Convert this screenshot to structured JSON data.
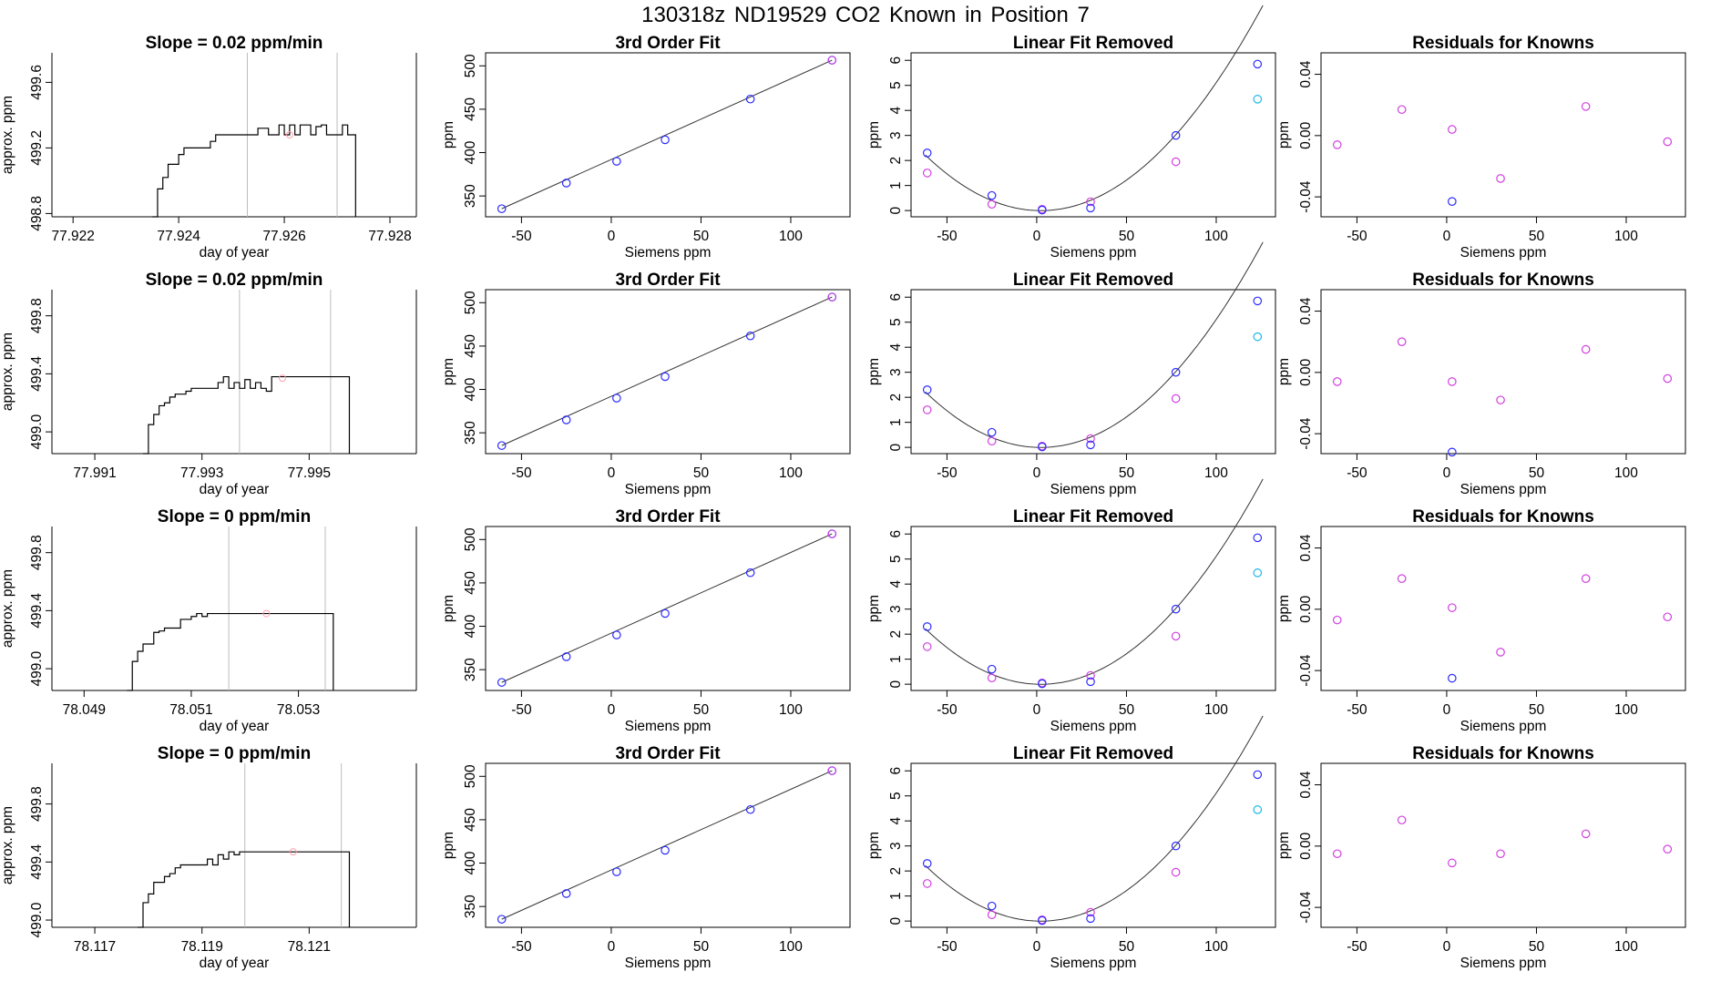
{
  "title": "130318z      ND19529    CO2 Known in Position  7",
  "colors": {
    "blue": "#2b2bff",
    "magenta": "#d23fe0",
    "cyan": "#19b8e6",
    "pink": "#ff9fb0",
    "grid": "#bdbdbd",
    "line": "#000000"
  },
  "labels": {
    "day_of_year": "day of year",
    "approx_ppm": "approx. ppm",
    "siemens_ppm": "Siemens ppm",
    "ppm": "ppm",
    "fit3": "3rd Order Fit",
    "linrem": "Linear Fit Removed",
    "resid": "Residuals for Knowns"
  },
  "chart_data": [
    {
      "type": "line",
      "row": 0,
      "title": "Slope =  0.02  ppm/min",
      "xlabel": "day of year",
      "ylabel": "approx. ppm",
      "xlim": [
        77.9216,
        77.9285
      ],
      "ylim": [
        498.78,
        499.78
      ],
      "xticks": [
        "77.922",
        "77.924",
        "77.926",
        "77.928"
      ],
      "yticks": [
        "498.8",
        "499.2",
        "499.6"
      ],
      "vlines": [
        77.9253,
        77.927
      ],
      "marker": [
        77.9261,
        499.28
      ],
      "trace_x": [
        77.9235,
        77.9236,
        77.9237,
        77.9238,
        77.9239,
        77.924,
        77.9241,
        77.9242,
        77.9245,
        77.9246,
        77.9247,
        77.9249,
        77.9253,
        77.9255,
        77.9257,
        77.9258,
        77.9259,
        77.926,
        77.9261,
        77.9262,
        77.9263,
        77.9264,
        77.9265,
        77.9266,
        77.9267,
        77.9268,
        77.9269,
        77.927,
        77.9271,
        77.9272,
        77.9273
      ],
      "trace_y": [
        498.78,
        498.95,
        499.02,
        499.1,
        499.1,
        499.16,
        499.2,
        499.2,
        499.2,
        499.24,
        499.28,
        499.28,
        499.28,
        499.32,
        499.28,
        499.28,
        499.34,
        499.28,
        499.34,
        499.28,
        499.34,
        499.34,
        499.28,
        499.33,
        499.34,
        499.28,
        499.28,
        499.28,
        499.34,
        499.28,
        499.28
      ],
      "end_x": 77.92735
    },
    {
      "type": "scatter",
      "row": 0,
      "title": "3rd Order Fit",
      "xlabel": "Siemens ppm",
      "ylabel": "ppm",
      "xlim": [
        -70,
        133
      ],
      "ylim": [
        326,
        515
      ],
      "xticks": [
        -50,
        0,
        50,
        100
      ],
      "yticks": [
        350,
        400,
        450,
        500
      ],
      "points": [
        [
          -61,
          335.3
        ],
        [
          -25,
          364.9
        ],
        [
          3,
          390.0
        ],
        [
          30,
          414.8
        ],
        [
          77.5,
          461.7
        ],
        [
          123,
          506.5
        ]
      ],
      "fit": "cubic"
    },
    {
      "type": "scatter",
      "row": 0,
      "title": "Linear Fit Removed",
      "xlabel": "Siemens ppm",
      "ylabel": "ppm",
      "xlim": [
        -70,
        133
      ],
      "ylim": [
        -0.25,
        6.3
      ],
      "xticks": [
        -50,
        0,
        50,
        100
      ],
      "yticks": [
        0,
        1,
        2,
        3,
        4,
        5,
        6
      ],
      "blue_points": [
        [
          -61,
          2.3
        ],
        [
          -25,
          0.6
        ],
        [
          3,
          0.02
        ],
        [
          30,
          0.1
        ],
        [
          77.5,
          3.0
        ],
        [
          123,
          5.85
        ]
      ],
      "magenta_points": [
        [
          -61,
          1.5
        ],
        [
          -25,
          0.25
        ],
        [
          3,
          0.05
        ],
        [
          30,
          0.35
        ],
        [
          77.5,
          1.95
        ]
      ],
      "cyan_points": [
        [
          123,
          4.45
        ]
      ],
      "curve": [
        0.000536,
        -0.00248,
        0.0
      ]
    },
    {
      "type": "scatter",
      "row": 0,
      "title": "Residuals for Knowns",
      "xlabel": "Siemens ppm",
      "ylabel": "ppm",
      "xlim": [
        -70,
        133
      ],
      "ylim": [
        -0.053,
        0.054
      ],
      "xticks": [
        -50,
        0,
        50,
        100
      ],
      "yticks": [
        "-0.04",
        "0.00",
        "0.04"
      ],
      "magenta_points": [
        [
          -61,
          -0.006
        ],
        [
          -25,
          0.017
        ],
        [
          3,
          0.004
        ],
        [
          30,
          -0.028
        ],
        [
          77.5,
          0.019
        ],
        [
          123,
          -0.004
        ]
      ],
      "blue_points": [
        [
          3,
          -0.043
        ]
      ]
    },
    {
      "type": "line",
      "row": 1,
      "title": "Slope =  0.02  ppm/min",
      "xlabel": "day of year",
      "ylabel": "approx. ppm",
      "xlim": [
        77.9902,
        77.997
      ],
      "ylim": [
        498.85,
        499.98
      ],
      "xticks": [
        "77.991",
        "77.993",
        "77.995"
      ],
      "yticks": [
        "499.0",
        "499.4",
        "499.8"
      ],
      "vlines": [
        77.9937,
        77.9954
      ],
      "marker": [
        77.9945,
        499.37
      ],
      "trace_x": [
        77.9919,
        77.992,
        77.9921,
        77.9922,
        77.9923,
        77.9924,
        77.9925,
        77.9926,
        77.9927,
        77.9928,
        77.9929,
        77.993,
        77.9932,
        77.9933,
        77.9934,
        77.9935,
        77.9936,
        77.9937,
        77.9938,
        77.9939,
        77.994,
        77.9941,
        77.9942,
        77.9943,
        77.9944,
        77.995,
        77.9955,
        77.9957
      ],
      "trace_y": [
        498.85,
        499.05,
        499.12,
        499.18,
        499.2,
        499.24,
        499.26,
        499.26,
        499.28,
        499.3,
        499.3,
        499.3,
        499.3,
        499.34,
        499.38,
        499.3,
        499.34,
        499.3,
        499.36,
        499.3,
        499.34,
        499.3,
        499.28,
        499.38,
        499.38,
        499.38,
        499.38,
        499.38
      ],
      "end_x": 77.99575
    },
    {
      "type": "scatter",
      "row": 1,
      "title": "3rd Order Fit",
      "xlabel": "Siemens ppm",
      "ylabel": "ppm",
      "xlim": [
        -70,
        133
      ],
      "ylim": [
        326,
        515
      ],
      "xticks": [
        -50,
        0,
        50,
        100
      ],
      "yticks": [
        350,
        400,
        450,
        500
      ],
      "points": [
        [
          -61,
          335.3
        ],
        [
          -25,
          364.9
        ],
        [
          3,
          390.0
        ],
        [
          30,
          414.8
        ],
        [
          77.5,
          461.7
        ],
        [
          123,
          506.5
        ]
      ],
      "fit": "cubic"
    },
    {
      "type": "scatter",
      "row": 1,
      "title": "Linear Fit Removed",
      "xlabel": "Siemens ppm",
      "ylabel": "ppm",
      "xlim": [
        -70,
        133
      ],
      "ylim": [
        -0.25,
        6.3
      ],
      "xticks": [
        -50,
        0,
        50,
        100
      ],
      "yticks": [
        0,
        1,
        2,
        3,
        4,
        5,
        6
      ],
      "blue_points": [
        [
          -61,
          2.3
        ],
        [
          -25,
          0.6
        ],
        [
          3,
          0.02
        ],
        [
          30,
          0.1
        ],
        [
          77.5,
          3.0
        ],
        [
          123,
          5.85
        ]
      ],
      "magenta_points": [
        [
          -61,
          1.5
        ],
        [
          -25,
          0.25
        ],
        [
          3,
          0.05
        ],
        [
          30,
          0.35
        ],
        [
          77.5,
          1.95
        ]
      ],
      "cyan_points": [
        [
          123,
          4.42
        ]
      ],
      "curve": [
        0.000536,
        -0.00248,
        0.0
      ]
    },
    {
      "type": "scatter",
      "row": 1,
      "title": "Residuals for Knowns",
      "xlabel": "Siemens ppm",
      "ylabel": "ppm",
      "xlim": [
        -70,
        133
      ],
      "ylim": [
        -0.053,
        0.054
      ],
      "xticks": [
        -50,
        0,
        50,
        100
      ],
      "yticks": [
        "-0.04",
        "0.00",
        "0.04"
      ],
      "magenta_points": [
        [
          -61,
          -0.006
        ],
        [
          -25,
          0.02
        ],
        [
          3,
          -0.006
        ],
        [
          30,
          -0.018
        ],
        [
          77.5,
          0.015
        ],
        [
          123,
          -0.004
        ]
      ],
      "blue_points": [
        [
          3,
          -0.052
        ]
      ]
    },
    {
      "type": "line",
      "row": 2,
      "title": "Slope =  0  ppm/min",
      "xlabel": "day of year",
      "ylabel": "approx. ppm",
      "xlim": [
        78.0484,
        78.0552
      ],
      "ylim": [
        498.85,
        499.98
      ],
      "xticks": [
        "78.049",
        "78.051",
        "78.053"
      ],
      "yticks": [
        "499.0",
        "499.4",
        "499.8"
      ],
      "vlines": [
        78.0517,
        78.0535
      ],
      "marker": [
        78.0524,
        499.38
      ],
      "trace_x": [
        78.0498,
        78.0499,
        78.05,
        78.0501,
        78.0502,
        78.0503,
        78.0504,
        78.0505,
        78.0507,
        78.0508,
        78.0509,
        78.051,
        78.0511,
        78.0512,
        78.0513,
        78.0514,
        78.052,
        78.053,
        78.0536
      ],
      "trace_y": [
        498.85,
        499.05,
        499.12,
        499.17,
        499.17,
        499.25,
        499.26,
        499.28,
        499.28,
        499.34,
        499.34,
        499.36,
        499.38,
        499.36,
        499.38,
        499.38,
        499.38,
        499.38,
        499.38
      ],
      "end_x": 78.05365
    },
    {
      "type": "scatter",
      "row": 2,
      "title": "3rd Order Fit",
      "xlabel": "Siemens ppm",
      "ylabel": "ppm",
      "xlim": [
        -70,
        133
      ],
      "ylim": [
        326,
        515
      ],
      "xticks": [
        -50,
        0,
        50,
        100
      ],
      "yticks": [
        350,
        400,
        450,
        500
      ],
      "points": [
        [
          -61,
          335.3
        ],
        [
          -25,
          364.9
        ],
        [
          3,
          390.0
        ],
        [
          30,
          414.8
        ],
        [
          77.5,
          461.7
        ],
        [
          123,
          506.5
        ]
      ],
      "fit": "cubic"
    },
    {
      "type": "scatter",
      "row": 2,
      "title": "Linear Fit Removed",
      "xlabel": "Siemens ppm",
      "ylabel": "ppm",
      "xlim": [
        -70,
        133
      ],
      "ylim": [
        -0.25,
        6.3
      ],
      "xticks": [
        -50,
        0,
        50,
        100
      ],
      "yticks": [
        0,
        1,
        2,
        3,
        4,
        5,
        6
      ],
      "blue_points": [
        [
          -61,
          2.3
        ],
        [
          -25,
          0.6
        ],
        [
          3,
          0.02
        ],
        [
          30,
          0.1
        ],
        [
          77.5,
          3.0
        ],
        [
          123,
          5.85
        ]
      ],
      "magenta_points": [
        [
          -61,
          1.5
        ],
        [
          -25,
          0.25
        ],
        [
          3,
          0.05
        ],
        [
          30,
          0.35
        ],
        [
          77.5,
          1.92
        ]
      ],
      "cyan_points": [
        [
          123,
          4.45
        ]
      ],
      "curve": [
        0.000536,
        -0.00248,
        0.0
      ]
    },
    {
      "type": "scatter",
      "row": 2,
      "title": "Residuals for Knowns",
      "xlabel": "Siemens ppm",
      "ylabel": "ppm",
      "xlim": [
        -70,
        133
      ],
      "ylim": [
        -0.053,
        0.054
      ],
      "xticks": [
        -50,
        0,
        50,
        100
      ],
      "yticks": [
        "-0.04",
        "0.00",
        "0.04"
      ],
      "magenta_points": [
        [
          -61,
          -0.007
        ],
        [
          -25,
          0.02
        ],
        [
          3,
          0.001
        ],
        [
          30,
          -0.028
        ],
        [
          77.5,
          0.02
        ],
        [
          123,
          -0.005
        ]
      ],
      "blue_points": [
        [
          3,
          -0.045
        ]
      ]
    },
    {
      "type": "line",
      "row": 3,
      "title": "Slope =  0  ppm/min",
      "xlabel": "day of year",
      "ylabel": "approx. ppm",
      "xlim": [
        78.1162,
        78.123
      ],
      "ylim": [
        498.95,
        500.08
      ],
      "xticks": [
        "78.117",
        "78.119",
        "78.121"
      ],
      "yticks": [
        "499.0",
        "499.4",
        "499.8"
      ],
      "vlines": [
        78.1198,
        78.1216
      ],
      "marker": [
        78.1207,
        499.47
      ],
      "trace_x": [
        78.1178,
        78.1179,
        78.118,
        78.1181,
        78.1182,
        78.1183,
        78.1184,
        78.1185,
        78.1186,
        78.1187,
        78.1189,
        78.119,
        78.1191,
        78.1192,
        78.1193,
        78.1194,
        78.1195,
        78.1196,
        78.1197,
        78.1205,
        78.1215,
        78.1217
      ],
      "trace_y": [
        498.95,
        499.12,
        499.18,
        499.26,
        499.26,
        499.3,
        499.32,
        499.36,
        499.38,
        499.38,
        499.38,
        499.38,
        499.42,
        499.38,
        499.45,
        499.42,
        499.47,
        499.45,
        499.47,
        499.47,
        499.47,
        499.47
      ],
      "end_x": 78.12175
    },
    {
      "type": "scatter",
      "row": 3,
      "title": "3rd Order Fit",
      "xlabel": "Siemens ppm",
      "ylabel": "ppm",
      "xlim": [
        -70,
        133
      ],
      "ylim": [
        326,
        515
      ],
      "xticks": [
        -50,
        0,
        50,
        100
      ],
      "yticks": [
        350,
        400,
        450,
        500
      ],
      "points": [
        [
          -61,
          335.3
        ],
        [
          -25,
          364.9
        ],
        [
          3,
          390.0
        ],
        [
          30,
          414.8
        ],
        [
          77.5,
          461.7
        ],
        [
          123,
          506.5
        ]
      ],
      "fit": "cubic"
    },
    {
      "type": "scatter",
      "row": 3,
      "title": "Linear Fit Removed",
      "xlabel": "Siemens ppm",
      "ylabel": "ppm",
      "xlim": [
        -70,
        133
      ],
      "ylim": [
        -0.25,
        6.3
      ],
      "xticks": [
        -50,
        0,
        50,
        100
      ],
      "yticks": [
        0,
        1,
        2,
        3,
        4,
        5,
        6
      ],
      "blue_points": [
        [
          -61,
          2.3
        ],
        [
          -25,
          0.6
        ],
        [
          3,
          0.02
        ],
        [
          30,
          0.1
        ],
        [
          77.5,
          3.0
        ],
        [
          123,
          5.85
        ]
      ],
      "magenta_points": [
        [
          -61,
          1.5
        ],
        [
          -25,
          0.25
        ],
        [
          3,
          0.05
        ],
        [
          30,
          0.35
        ],
        [
          77.5,
          1.95
        ]
      ],
      "cyan_points": [
        [
          123,
          4.45
        ]
      ],
      "curve": [
        0.000536,
        -0.00248,
        0.0
      ]
    },
    {
      "type": "scatter",
      "row": 3,
      "title": "Residuals for Knowns",
      "xlabel": "Siemens ppm",
      "ylabel": "ppm",
      "xlim": [
        -70,
        133
      ],
      "ylim": [
        -0.053,
        0.054
      ],
      "xticks": [
        -50,
        0,
        50,
        100
      ],
      "yticks": [
        "-0.04",
        "0.00",
        "0.04"
      ],
      "magenta_points": [
        [
          -61,
          -0.005
        ],
        [
          -25,
          0.017
        ],
        [
          3,
          -0.011
        ],
        [
          30,
          -0.005
        ],
        [
          77.5,
          0.008
        ],
        [
          123,
          -0.002
        ]
      ],
      "blue_points": []
    }
  ]
}
